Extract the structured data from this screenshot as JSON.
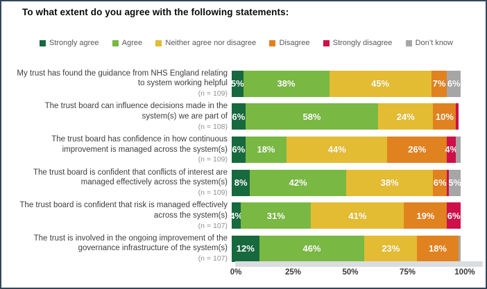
{
  "chart_data": {
    "type": "bar",
    "stacked": true,
    "orientation": "horizontal",
    "title": "To what extent do you agree with the following statements:",
    "xlabel": "",
    "ylabel": "",
    "xlim": [
      0,
      100
    ],
    "xticks": [
      "0%",
      "25%",
      "50%",
      "75%",
      "100%"
    ],
    "grid": false,
    "legend_position": "top",
    "label_min_show": 4,
    "categories": [
      {
        "label": "My trust has found the guidance from NHS England relating to system working helpful",
        "n": "(n = 109)"
      },
      {
        "label": "The trust board can influence decisions made in the system(s) we are part of",
        "n": "(n = 108)"
      },
      {
        "label": "The trust board has confidence in how continuous improvement is managed across the system(s)",
        "n": "(n = 109)"
      },
      {
        "label": "The trust board is confident that conflicts of interest are managed effectively across the system(s)",
        "n": "(n = 109)"
      },
      {
        "label": "The trust board is confident that risk is managed effectively across the system(s)",
        "n": "(n = 107)"
      },
      {
        "label": "The trust is involved in the ongoing improvement of the governance infrastructure of the system(s)",
        "n": "(n = 107)"
      }
    ],
    "series": [
      {
        "name": "Strongly agree",
        "color": "#17693E",
        "values": [
          5,
          6,
          6,
          8,
          4,
          12
        ]
      },
      {
        "name": "Agree",
        "color": "#79B843",
        "values": [
          38,
          58,
          18,
          42,
          31,
          46
        ]
      },
      {
        "name": "Neither agree nor disagree",
        "color": "#E3BC34",
        "values": [
          45,
          24,
          44,
          38,
          41,
          23
        ]
      },
      {
        "name": "Disagree",
        "color": "#E0821F",
        "values": [
          7,
          10,
          26,
          6,
          19,
          18
        ]
      },
      {
        "name": "Strongly disagree",
        "color": "#CE0F49",
        "values": [
          0,
          1,
          4,
          1,
          6,
          0
        ]
      },
      {
        "name": "Don’t know",
        "color": "#A6A6A6",
        "values": [
          6,
          0,
          2,
          5,
          0,
          1
        ]
      }
    ]
  }
}
